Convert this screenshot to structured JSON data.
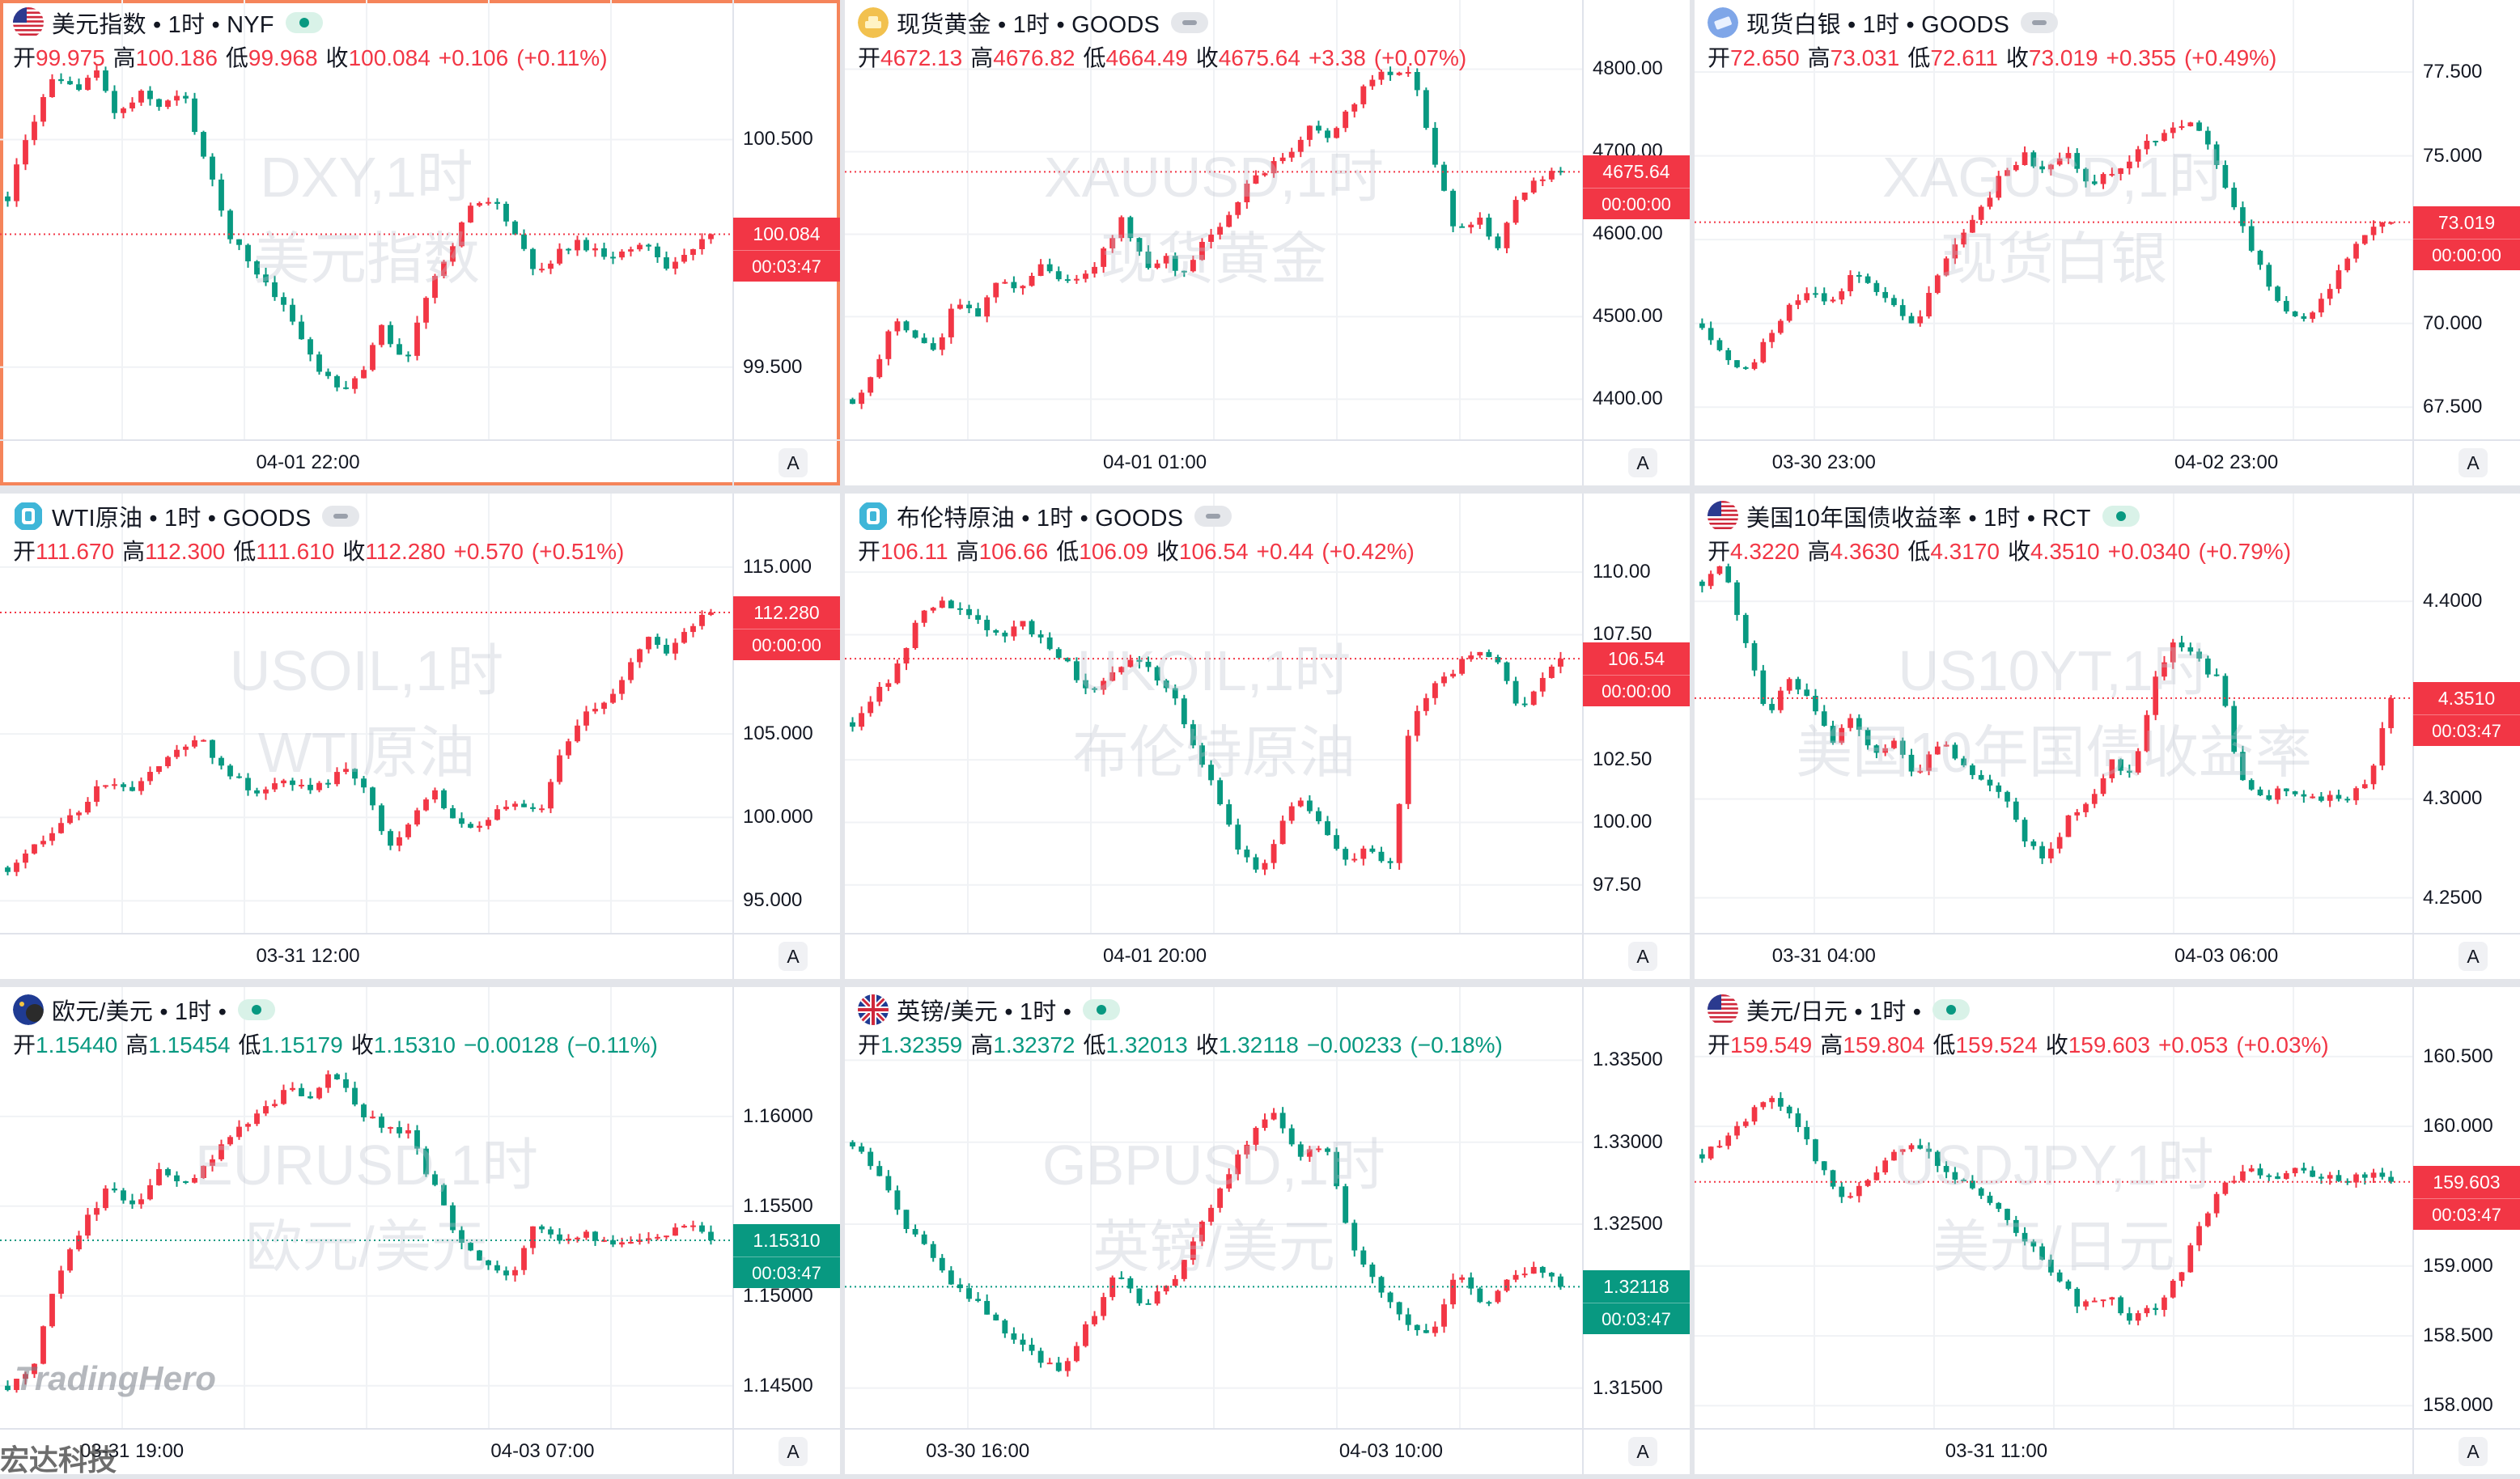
{
  "colors": {
    "up": "#f23645",
    "down": "#089981",
    "grid": "#f0f2f5",
    "axis_line": "#e0e3eb"
  },
  "panels": [
    {
      "id": "dxy",
      "flag": "us-flag-icon",
      "title": "美元指数 • 1时 • NYF",
      "status": "live",
      "o": "99.975",
      "h": "100.186",
      "l": "99.968",
      "c": "100.084",
      "chg": "+0.106",
      "pct": "(+0.11%)",
      "dir": "up",
      "price": "100.084",
      "countdown": "00:03:47",
      "ticks": [
        "100.500",
        "99.500"
      ],
      "xticks": [
        "04-01 22:00"
      ],
      "wm1": "DXY,1时",
      "wm2": "美元指数",
      "ylim": [
        99.25,
        100.9
      ],
      "lastLevel": 100.084,
      "chart_data": {
        "type": "candlestick",
        "path": [
          100.25,
          100.55,
          100.75,
          100.72,
          100.8,
          100.6,
          100.7,
          100.65,
          100.7,
          100.4,
          100.1,
          99.95,
          99.85,
          99.7,
          99.5,
          99.4,
          99.45,
          99.7,
          99.5,
          99.8,
          100.0,
          100.2,
          100.25,
          100.1,
          99.9,
          100.0,
          100.05,
          100.0,
          100.0,
          100.05,
          99.95,
          100.0,
          100.08
        ]
      }
    },
    {
      "id": "xau",
      "flag": "gold-icon",
      "title": "现货黄金 • 1时 • GOODS",
      "status": "closed",
      "o": "4672.13",
      "h": "4676.82",
      "l": "4664.49",
      "c": "4675.64",
      "chg": "+3.38",
      "pct": "(+0.07%)",
      "dir": "up",
      "price": "4675.64",
      "countdown": "00:00:00",
      "ticks": [
        "4800.00",
        "4700.00",
        "4600.00",
        "4500.00",
        "4400.00"
      ],
      "xticks": [
        "04-01 01:00"
      ],
      "wm1": "XAUUSD,1时",
      "wm2": "现货黄金",
      "ylim": [
        4370,
        4825
      ],
      "lastLevel": 4675.64,
      "chart_data": {
        "type": "candlestick",
        "path": [
          4400,
          4430,
          4500,
          4470,
          4460,
          4520,
          4500,
          4540,
          4530,
          4560,
          4550,
          4540,
          4580,
          4620,
          4560,
          4570,
          4550,
          4600,
          4620,
          4660,
          4680,
          4700,
          4730,
          4720,
          4760,
          4790,
          4800,
          4790,
          4680,
          4600,
          4620,
          4580,
          4650,
          4670,
          4675
        ]
      }
    },
    {
      "id": "xag",
      "flag": "silver-icon",
      "title": "现货白银 • 1时 • GOODS",
      "status": "closed",
      "o": "72.650",
      "h": "73.031",
      "l": "72.611",
      "c": "73.019",
      "chg": "+0.355",
      "pct": "(+0.49%)",
      "dir": "up",
      "price": "73.019",
      "countdown": "00:00:00",
      "ticks": [
        "77.500",
        "75.000",
        "72.500",
        "70.000",
        "67.500"
      ],
      "xticks": [
        "03-30 23:00",
        "04-02 23:00"
      ],
      "wm1": "XAGUSD,1时",
      "wm2": "现货白银",
      "ylim": [
        67.0,
        78.2
      ],
      "lastLevel": 73.019,
      "chart_data": {
        "type": "candlestick",
        "path": [
          70.0,
          69.0,
          68.5,
          69.5,
          70.5,
          71.0,
          70.5,
          71.5,
          71.0,
          70.5,
          70.0,
          71.5,
          72.5,
          73.5,
          74.5,
          75.0,
          74.5,
          75.0,
          74.0,
          74.5,
          75.0,
          75.5,
          75.8,
          76.0,
          74.5,
          73.0,
          71.5,
          70.5,
          70.0,
          71.0,
          72.0,
          72.8,
          73.0
        ]
      }
    },
    {
      "id": "usoil",
      "flag": "oil-icon",
      "title": "WTI原油 • 1时 • GOODS",
      "status": "closed",
      "o": "111.670",
      "h": "112.300",
      "l": "111.610",
      "c": "112.280",
      "chg": "+0.570",
      "pct": "(+0.51%)",
      "dir": "up",
      "price": "112.280",
      "countdown": "00:00:00",
      "ticks": [
        "115.000",
        "105.000",
        "100.000",
        "95.000"
      ],
      "xticks": [
        "03-31 12:00"
      ],
      "wm1": "USOIL,1时",
      "wm2": "WTI原油",
      "ylim": [
        94.0,
        116.5
      ],
      "lastLevel": 112.28,
      "chart_data": {
        "type": "candlestick",
        "path": [
          97.0,
          98.0,
          99.0,
          100.0,
          101.5,
          102.0,
          101.5,
          103.0,
          104.0,
          105.0,
          103.0,
          102.0,
          101.5,
          102.5,
          101.5,
          102.0,
          103.0,
          101.0,
          98.0,
          100.0,
          101.5,
          100.0,
          99.5,
          100.5,
          101.0,
          100.0,
          104.0,
          106.0,
          107.0,
          108.5,
          111.0,
          110.0,
          111.5,
          112.28
        ]
      }
    },
    {
      "id": "ukoil",
      "flag": "oil-icon",
      "title": "布伦特原油 • 1时 • GOODS",
      "status": "closed",
      "o": "106.11",
      "h": "106.66",
      "l": "106.09",
      "c": "106.54",
      "chg": "+0.44",
      "pct": "(+0.42%)",
      "dir": "up",
      "price": "106.54",
      "countdown": "00:00:00",
      "ticks": [
        "110.00",
        "107.50",
        "102.50",
        "100.00",
        "97.50"
      ],
      "xticks": [
        "04-01 20:00"
      ],
      "wm1": "UKOIL,1时",
      "wm2": "布伦特原油",
      "ylim": [
        96.2,
        111.2
      ],
      "lastLevel": 106.54,
      "chart_data": {
        "type": "candlestick",
        "path": [
          104.0,
          105.0,
          106.0,
          108.0,
          109.0,
          108.5,
          108.0,
          107.5,
          108.0,
          107.0,
          106.5,
          105.0,
          106.0,
          106.5,
          106.0,
          105.0,
          103.0,
          101.0,
          99.0,
          98.0,
          100.0,
          101.0,
          99.5,
          98.5,
          99.0,
          98.0,
          104.0,
          105.5,
          106.0,
          107.0,
          106.5,
          104.5,
          105.5,
          106.54
        ]
      }
    },
    {
      "id": "us10y",
      "flag": "us-flag-icon",
      "title": "美国10年国债收益率 • 1时 • RCT",
      "status": "live",
      "o": "4.3220",
      "h": "4.3630",
      "l": "4.3170",
      "c": "4.3510",
      "chg": "+0.0340",
      "pct": "(+0.79%)",
      "dir": "up",
      "price": "4.3510",
      "countdown": "00:03:47",
      "ticks": [
        "4.4000",
        "4.3000",
        "4.2500"
      ],
      "xticks": [
        "03-31 04:00",
        "04-03 06:00"
      ],
      "wm1": "US10YT,1时",
      "wm2": "美国10年国债收益率",
      "ylim": [
        4.24,
        4.43
      ],
      "lastLevel": 4.351,
      "chart_data": {
        "type": "candlestick",
        "path": [
          4.41,
          4.42,
          4.38,
          4.34,
          4.36,
          4.35,
          4.33,
          4.34,
          4.32,
          4.33,
          4.31,
          4.33,
          4.32,
          4.31,
          4.3,
          4.28,
          4.27,
          4.29,
          4.3,
          4.32,
          4.31,
          4.36,
          4.38,
          4.37,
          4.36,
          4.31,
          4.3,
          4.305,
          4.3,
          4.3,
          4.3,
          4.31,
          4.351
        ]
      }
    },
    {
      "id": "eurusd",
      "flag": "eu-flag-icon",
      "title": "欧元/美元 • 1时 •",
      "status": "live",
      "o": "1.15440",
      "h": "1.15454",
      "l": "1.15179",
      "c": "1.15310",
      "chg": "−0.00128",
      "pct": "(−0.11%)",
      "dir": "down",
      "price": "1.15310",
      "countdown": "00:03:47",
      "ticks": [
        "1.16000",
        "1.15500",
        "1.15000",
        "1.14500"
      ],
      "xticks": [
        "03-31 19:00",
        "04-03 07:00"
      ],
      "wm1": "EURUSD,1时",
      "wm2": "欧元/美元",
      "ylim": [
        1.1435,
        1.1645
      ],
      "lastLevel": 1.1531,
      "chart_data": {
        "type": "candlestick",
        "path": [
          1.145,
          1.146,
          1.151,
          1.154,
          1.156,
          1.155,
          1.157,
          1.156,
          1.1575,
          1.159,
          1.16,
          1.1615,
          1.161,
          1.1625,
          1.16,
          1.1595,
          1.159,
          1.156,
          1.153,
          1.152,
          1.151,
          1.154,
          1.153,
          1.1535,
          1.153,
          1.1532,
          1.1535,
          1.154,
          1.1531
        ]
      }
    },
    {
      "id": "gbpusd",
      "flag": "uk-flag-icon",
      "title": "英镑/美元 • 1时 •",
      "status": "live",
      "o": "1.32359",
      "h": "1.32372",
      "l": "1.32013",
      "c": "1.32118",
      "chg": "−0.00233",
      "pct": "(−0.18%)",
      "dir": "down",
      "price": "1.32118",
      "countdown": "00:03:47",
      "ticks": [
        "1.33500",
        "1.33000",
        "1.32500",
        "1.31500"
      ],
      "xticks": [
        "03-30 16:00",
        "04-03 10:00"
      ],
      "wm1": "GBPUSD,1时",
      "wm2": "英镑/美元",
      "ylim": [
        1.3135,
        1.3365
      ],
      "lastLevel": 1.32118,
      "chart_data": {
        "type": "candlestick",
        "path": [
          1.33,
          1.328,
          1.325,
          1.323,
          1.321,
          1.32,
          1.318,
          1.317,
          1.316,
          1.319,
          1.322,
          1.32,
          1.321,
          1.324,
          1.327,
          1.33,
          1.332,
          1.329,
          1.33,
          1.324,
          1.321,
          1.319,
          1.318,
          1.322,
          1.32,
          1.3215,
          1.3225,
          1.3212
        ]
      }
    },
    {
      "id": "usdjpy",
      "flag": "us-flag-icon",
      "title": "美元/日元 • 1时 •",
      "status": "live",
      "o": "159.549",
      "h": "159.804",
      "l": "159.524",
      "c": "159.603",
      "chg": "+0.053",
      "pct": "(+0.03%)",
      "dir": "up",
      "price": "159.603",
      "countdown": "00:03:47",
      "ticks": [
        "160.500",
        "160.000",
        "159.000",
        "158.500",
        "158.000"
      ],
      "xticks": [
        "03-31 11:00"
      ],
      "wm1": "USDJPY,1时",
      "wm2": "美元/日元",
      "ylim": [
        157.95,
        160.65
      ],
      "lastLevel": 159.603,
      "chart_data": {
        "type": "candlestick",
        "path": [
          159.8,
          159.9,
          160.1,
          160.2,
          160.0,
          159.7,
          159.5,
          159.6,
          159.8,
          159.9,
          159.7,
          159.6,
          159.5,
          159.3,
          159.1,
          158.9,
          158.7,
          158.8,
          158.6,
          158.7,
          158.9,
          159.3,
          159.6,
          159.7,
          159.6,
          159.7,
          159.65,
          159.6,
          159.65,
          159.603
        ]
      }
    }
  ],
  "branding": {
    "logo_text": "TradingHero",
    "corner_text": "宏达科技"
  },
  "axis_button": "A"
}
